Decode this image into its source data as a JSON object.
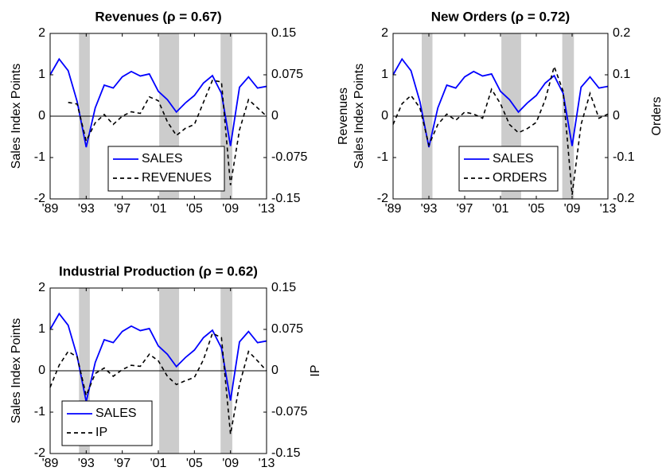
{
  "chart_data": [
    {
      "type": "line",
      "title": "Revenues (ρ = 0.67)",
      "ylabel": "Sales Index Points",
      "x": [
        1989,
        1990,
        1991,
        1992,
        1993,
        1994,
        1995,
        1996,
        1997,
        1998,
        1999,
        2000,
        2001,
        2002,
        2003,
        2004,
        2005,
        2006,
        2007,
        2008,
        2009,
        2010,
        2011,
        2012,
        2013
      ],
      "xlim": [
        1989,
        2013
      ],
      "xticks": [
        {
          "value": 1989,
          "label": "'89"
        },
        {
          "value": 1993,
          "label": "'93"
        },
        {
          "value": 1997,
          "label": "'97"
        },
        {
          "value": 2001,
          "label": "'01"
        },
        {
          "value": 2005,
          "label": "'05"
        },
        {
          "value": 2009,
          "label": "'09"
        },
        {
          "value": 2013,
          "label": "'13"
        }
      ],
      "ylim": [
        -2,
        2
      ],
      "yticks": [
        -2,
        -1,
        0,
        1,
        2
      ],
      "y2lim": [
        -0.15,
        0.15
      ],
      "y2ticks": [
        -0.15,
        -0.075,
        0,
        0.075,
        0.15
      ],
      "recessions": [
        [
          1992.2,
          1993.4
        ],
        [
          2001.1,
          2003.3
        ],
        [
          2007.9,
          2009.2
        ]
      ],
      "legend": "lower center",
      "series": [
        {
          "name": "SALES",
          "color": "#0000ff",
          "dashed": false,
          "values": [
            1.0,
            1.38,
            1.1,
            0.35,
            -0.75,
            0.2,
            0.75,
            0.68,
            0.95,
            1.08,
            0.97,
            1.02,
            0.6,
            0.4,
            0.1,
            0.32,
            0.5,
            0.8,
            0.98,
            0.55,
            -0.72,
            0.7,
            0.95,
            0.68,
            0.72
          ]
        },
        {
          "name": "REVENUES",
          "color": "#000000",
          "dashed": true,
          "axis": "y2",
          "values": [
            null,
            null,
            0.025,
            0.022,
            -0.045,
            -0.012,
            0.003,
            -0.015,
            0.0,
            0.008,
            0.005,
            0.035,
            0.028,
            -0.01,
            -0.035,
            -0.022,
            -0.015,
            0.025,
            0.065,
            0.062,
            -0.125,
            -0.025,
            0.03,
            0.015,
            0.0
          ]
        }
      ]
    },
    {
      "type": "line",
      "title": "New Orders (ρ = 0.72)",
      "ylabel": "Sales Index Points",
      "ylabel_outer": "Revenues",
      "y2label": "Orders",
      "x": [
        1989,
        1990,
        1991,
        1992,
        1993,
        1994,
        1995,
        1996,
        1997,
        1998,
        1999,
        2000,
        2001,
        2002,
        2003,
        2004,
        2005,
        2006,
        2007,
        2008,
        2009,
        2010,
        2011,
        2012,
        2013
      ],
      "xlim": [
        1989,
        2013
      ],
      "xticks": [
        {
          "value": 1989,
          "label": "'89"
        },
        {
          "value": 1993,
          "label": "'93"
        },
        {
          "value": 1997,
          "label": "'97"
        },
        {
          "value": 2001,
          "label": "'01"
        },
        {
          "value": 2005,
          "label": "'05"
        },
        {
          "value": 2009,
          "label": "'09"
        },
        {
          "value": 2013,
          "label": "'13"
        }
      ],
      "ylim": [
        -2,
        2
      ],
      "yticks": [
        -2,
        -1,
        0,
        1,
        2
      ],
      "y2lim": [
        -0.2,
        0.2
      ],
      "y2ticks": [
        -0.2,
        -0.1,
        0,
        0.1,
        0.2
      ],
      "recessions": [
        [
          1992.2,
          1993.4
        ],
        [
          2001.1,
          2003.3
        ],
        [
          2007.9,
          2009.2
        ]
      ],
      "legend": "lower center",
      "series": [
        {
          "name": "SALES",
          "color": "#0000ff",
          "dashed": false,
          "values": [
            1.0,
            1.38,
            1.1,
            0.35,
            -0.75,
            0.2,
            0.75,
            0.68,
            0.95,
            1.08,
            0.97,
            1.02,
            0.6,
            0.4,
            0.1,
            0.32,
            0.5,
            0.8,
            0.98,
            0.55,
            -0.72,
            0.7,
            0.95,
            0.68,
            0.72
          ]
        },
        {
          "name": "ORDERS",
          "color": "#000000",
          "dashed": true,
          "axis": "y2",
          "values": [
            -0.02,
            0.03,
            0.05,
            0.02,
            -0.07,
            -0.02,
            0.005,
            -0.01,
            0.01,
            0.005,
            -0.005,
            0.065,
            0.03,
            -0.02,
            -0.04,
            -0.03,
            -0.015,
            0.04,
            0.12,
            0.06,
            -0.19,
            -0.02,
            0.055,
            -0.005,
            0.005
          ]
        }
      ]
    },
    {
      "type": "line",
      "title": "Industrial Production (ρ = 0.62)",
      "ylabel": "Sales Index Points",
      "y2label": "IP",
      "x": [
        1989,
        1990,
        1991,
        1992,
        1993,
        1994,
        1995,
        1996,
        1997,
        1998,
        1999,
        2000,
        2001,
        2002,
        2003,
        2004,
        2005,
        2006,
        2007,
        2008,
        2009,
        2010,
        2011,
        2012,
        2013
      ],
      "xlim": [
        1989,
        2013
      ],
      "xticks": [
        {
          "value": 1989,
          "label": "'89"
        },
        {
          "value": 1993,
          "label": "'93"
        },
        {
          "value": 1997,
          "label": "'97"
        },
        {
          "value": 2001,
          "label": "'01"
        },
        {
          "value": 2005,
          "label": "'05"
        },
        {
          "value": 2009,
          "label": "'09"
        },
        {
          "value": 2013,
          "label": "'13"
        }
      ],
      "ylim": [
        -2,
        2
      ],
      "yticks": [
        -2,
        -1,
        0,
        1,
        2
      ],
      "y2lim": [
        -0.15,
        0.15
      ],
      "y2ticks": [
        -0.15,
        -0.075,
        0,
        0.075,
        0.15
      ],
      "recessions": [
        [
          1992.2,
          1993.4
        ],
        [
          2001.1,
          2003.3
        ],
        [
          2007.9,
          2009.2
        ]
      ],
      "legend": "lower left",
      "series": [
        {
          "name": "SALES",
          "color": "#0000ff",
          "dashed": false,
          "values": [
            1.0,
            1.38,
            1.1,
            0.35,
            -0.75,
            0.2,
            0.75,
            0.68,
            0.95,
            1.08,
            0.97,
            1.02,
            0.6,
            0.4,
            0.1,
            0.32,
            0.5,
            0.8,
            0.98,
            0.55,
            -0.72,
            0.7,
            0.95,
            0.68,
            0.72
          ]
        },
        {
          "name": "IP",
          "color": "#000000",
          "dashed": true,
          "axis": "y2",
          "values": [
            -0.03,
            0.01,
            0.035,
            0.025,
            -0.045,
            -0.005,
            0.005,
            -0.01,
            0.002,
            0.01,
            0.008,
            0.03,
            0.018,
            -0.01,
            -0.025,
            -0.018,
            -0.012,
            0.02,
            0.068,
            0.06,
            -0.115,
            -0.025,
            0.035,
            0.018,
            0.0
          ]
        }
      ]
    }
  ]
}
